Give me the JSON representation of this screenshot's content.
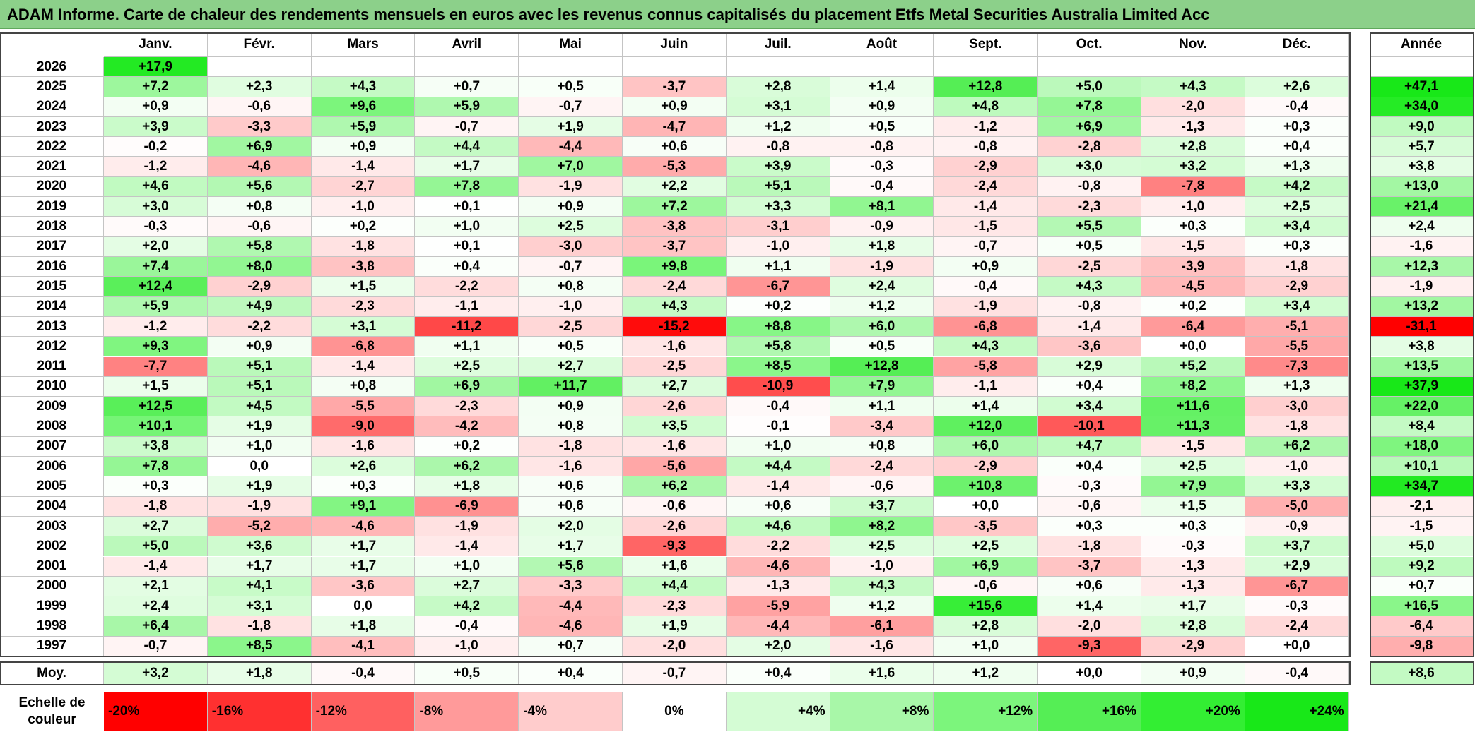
{
  "title": "ADAM Informe. Carte de chaleur des rendements mensuels en euros avec les revenus connus capitalisés du placement Etfs Metal Securities Australia Limited Acc",
  "chart_data": {
    "type": "heatmap",
    "columns": [
      "Janv.",
      "Févr.",
      "Mars",
      "Avril",
      "Mai",
      "Juin",
      "Juil.",
      "Août",
      "Sept.",
      "Oct.",
      "Nov.",
      "Déc."
    ],
    "year_column": "Année",
    "avg_label": "Moy.",
    "rows": [
      {
        "year": "2026",
        "values": [
          "+17,9",
          "",
          "",
          "",
          "",
          "",
          "",
          "",
          "",
          "",
          "",
          ""
        ],
        "annual": ""
      },
      {
        "year": "2025",
        "values": [
          "+7,2",
          "+2,3",
          "+4,3",
          "+0,7",
          "+0,5",
          "-3,7",
          "+2,8",
          "+1,4",
          "+12,8",
          "+5,0",
          "+4,3",
          "+2,6"
        ],
        "annual": "+47,1"
      },
      {
        "year": "2024",
        "values": [
          "+0,9",
          "-0,6",
          "+9,6",
          "+5,9",
          "-0,7",
          "+0,9",
          "+3,1",
          "+0,9",
          "+4,8",
          "+7,8",
          "-2,0",
          "-0,4"
        ],
        "annual": "+34,0"
      },
      {
        "year": "2023",
        "values": [
          "+3,9",
          "-3,3",
          "+5,9",
          "-0,7",
          "+1,9",
          "-4,7",
          "+1,2",
          "+0,5",
          "-1,2",
          "+6,9",
          "-1,3",
          "+0,3"
        ],
        "annual": "+9,0"
      },
      {
        "year": "2022",
        "values": [
          "-0,2",
          "+6,9",
          "+0,9",
          "+4,4",
          "-4,4",
          "+0,6",
          "-0,8",
          "-0,8",
          "-0,8",
          "-2,8",
          "+2,8",
          "+0,4"
        ],
        "annual": "+5,7"
      },
      {
        "year": "2021",
        "values": [
          "-1,2",
          "-4,6",
          "-1,4",
          "+1,7",
          "+7,0",
          "-5,3",
          "+3,9",
          "-0,3",
          "-2,9",
          "+3,0",
          "+3,2",
          "+1,3"
        ],
        "annual": "+3,8"
      },
      {
        "year": "2020",
        "values": [
          "+4,6",
          "+5,6",
          "-2,7",
          "+7,8",
          "-1,9",
          "+2,2",
          "+5,1",
          "-0,4",
          "-2,4",
          "-0,8",
          "-7,8",
          "+4,2"
        ],
        "annual": "+13,0"
      },
      {
        "year": "2019",
        "values": [
          "+3,0",
          "+0,8",
          "-1,0",
          "+0,1",
          "+0,9",
          "+7,2",
          "+3,3",
          "+8,1",
          "-1,4",
          "-2,3",
          "-1,0",
          "+2,5"
        ],
        "annual": "+21,4"
      },
      {
        "year": "2018",
        "values": [
          "-0,3",
          "-0,6",
          "+0,2",
          "+1,0",
          "+2,5",
          "-3,8",
          "-3,1",
          "-0,9",
          "-1,5",
          "+5,5",
          "+0,3",
          "+3,4"
        ],
        "annual": "+2,4"
      },
      {
        "year": "2017",
        "values": [
          "+2,0",
          "+5,8",
          "-1,8",
          "+0,1",
          "-3,0",
          "-3,7",
          "-1,0",
          "+1,8",
          "-0,7",
          "+0,5",
          "-1,5",
          "+0,3"
        ],
        "annual": "-1,6"
      },
      {
        "year": "2016",
        "values": [
          "+7,4",
          "+8,0",
          "-3,8",
          "+0,4",
          "-0,7",
          "+9,8",
          "+1,1",
          "-1,9",
          "+0,9",
          "-2,5",
          "-3,9",
          "-1,8"
        ],
        "annual": "+12,3"
      },
      {
        "year": "2015",
        "values": [
          "+12,4",
          "-2,9",
          "+1,5",
          "-2,2",
          "+0,8",
          "-2,4",
          "-6,7",
          "+2,4",
          "-0,4",
          "+4,3",
          "-4,5",
          "-2,9"
        ],
        "annual": "-1,9"
      },
      {
        "year": "2014",
        "values": [
          "+5,9",
          "+4,9",
          "-2,3",
          "-1,1",
          "-1,0",
          "+4,3",
          "+0,2",
          "+1,2",
          "-1,9",
          "-0,8",
          "+0,2",
          "+3,4"
        ],
        "annual": "+13,2"
      },
      {
        "year": "2013",
        "values": [
          "-1,2",
          "-2,2",
          "+3,1",
          "-11,2",
          "-2,5",
          "-15,2",
          "+8,8",
          "+6,0",
          "-6,8",
          "-1,4",
          "-6,4",
          "-5,1"
        ],
        "annual": "-31,1"
      },
      {
        "year": "2012",
        "values": [
          "+9,3",
          "+0,9",
          "-6,8",
          "+1,1",
          "+0,5",
          "-1,6",
          "+5,8",
          "+0,5",
          "+4,3",
          "-3,6",
          "+0,0",
          "-5,5"
        ],
        "annual": "+3,8"
      },
      {
        "year": "2011",
        "values": [
          "-7,7",
          "+5,1",
          "-1,4",
          "+2,5",
          "+2,7",
          "-2,5",
          "+8,5",
          "+12,8",
          "-5,8",
          "+2,9",
          "+5,2",
          "-7,3"
        ],
        "annual": "+13,5"
      },
      {
        "year": "2010",
        "values": [
          "+1,5",
          "+5,1",
          "+0,8",
          "+6,9",
          "+11,7",
          "+2,7",
          "-10,9",
          "+7,9",
          "-1,1",
          "+0,4",
          "+8,2",
          "+1,3"
        ],
        "annual": "+37,9"
      },
      {
        "year": "2009",
        "values": [
          "+12,5",
          "+4,5",
          "-5,5",
          "-2,3",
          "+0,9",
          "-2,6",
          "-0,4",
          "+1,1",
          "+1,4",
          "+3,4",
          "+11,6",
          "-3,0"
        ],
        "annual": "+22,0"
      },
      {
        "year": "2008",
        "values": [
          "+10,1",
          "+1,9",
          "-9,0",
          "-4,2",
          "+0,8",
          "+3,5",
          "-0,1",
          "-3,4",
          "+12,0",
          "-10,1",
          "+11,3",
          "-1,8"
        ],
        "annual": "+8,4"
      },
      {
        "year": "2007",
        "values": [
          "+3,8",
          "+1,0",
          "-1,6",
          "+0,2",
          "-1,8",
          "-1,6",
          "+1,0",
          "+0,8",
          "+6,0",
          "+4,7",
          "-1,5",
          "+6,2"
        ],
        "annual": "+18,0"
      },
      {
        "year": "2006",
        "values": [
          "+7,8",
          "0,0",
          "+2,6",
          "+6,2",
          "-1,6",
          "-5,6",
          "+4,4",
          "-2,4",
          "-2,9",
          "+0,4",
          "+2,5",
          "-1,0"
        ],
        "annual": "+10,1"
      },
      {
        "year": "2005",
        "values": [
          "+0,3",
          "+1,9",
          "+0,3",
          "+1,8",
          "+0,6",
          "+6,2",
          "-1,4",
          "-0,6",
          "+10,8",
          "-0,3",
          "+7,9",
          "+3,3"
        ],
        "annual": "+34,7"
      },
      {
        "year": "2004",
        "values": [
          "-1,8",
          "-1,9",
          "+9,1",
          "-6,9",
          "+0,6",
          "-0,6",
          "+0,6",
          "+3,7",
          "+0,0",
          "-0,6",
          "+1,5",
          "-5,0"
        ],
        "annual": "-2,1"
      },
      {
        "year": "2003",
        "values": [
          "+2,7",
          "-5,2",
          "-4,6",
          "-1,9",
          "+2,0",
          "-2,6",
          "+4,6",
          "+8,2",
          "-3,5",
          "+0,3",
          "+0,3",
          "-0,9"
        ],
        "annual": "-1,5"
      },
      {
        "year": "2002",
        "values": [
          "+5,0",
          "+3,6",
          "+1,7",
          "-1,4",
          "+1,7",
          "-9,3",
          "-2,2",
          "+2,5",
          "+2,5",
          "-1,8",
          "-0,3",
          "+3,7"
        ],
        "annual": "+5,0"
      },
      {
        "year": "2001",
        "values": [
          "-1,4",
          "+1,7",
          "+1,7",
          "+1,0",
          "+5,6",
          "+1,6",
          "-4,6",
          "-1,0",
          "+6,9",
          "-3,7",
          "-1,3",
          "+2,9"
        ],
        "annual": "+9,2"
      },
      {
        "year": "2000",
        "values": [
          "+2,1",
          "+4,1",
          "-3,6",
          "+2,7",
          "-3,3",
          "+4,4",
          "-1,3",
          "+4,3",
          "-0,6",
          "+0,6",
          "-1,3",
          "-6,7"
        ],
        "annual": "+0,7"
      },
      {
        "year": "1999",
        "values": [
          "+2,4",
          "+3,1",
          "0,0",
          "+4,2",
          "-4,4",
          "-2,3",
          "-5,9",
          "+1,2",
          "+15,6",
          "+1,4",
          "+1,7",
          "-0,3"
        ],
        "annual": "+16,5"
      },
      {
        "year": "1998",
        "values": [
          "+6,4",
          "-1,8",
          "+1,8",
          "-0,4",
          "-4,6",
          "+1,9",
          "-4,4",
          "-6,1",
          "+2,8",
          "-2,0",
          "+2,8",
          "-2,4"
        ],
        "annual": "-6,4"
      },
      {
        "year": "1997",
        "values": [
          "-0,7",
          "+8,5",
          "-4,1",
          "-1,0",
          "+0,7",
          "-2,0",
          "+2,0",
          "-1,6",
          "+1,0",
          "-9,3",
          "-2,9",
          "+0,0"
        ],
        "annual": "-9,8"
      }
    ],
    "averages": [
      "+3,2",
      "+1,8",
      "-0,4",
      "+0,5",
      "+0,4",
      "-0,7",
      "+0,4",
      "+1,6",
      "+1,2",
      "+0,0",
      "+0,9",
      "-0,4"
    ],
    "average_annual": "+8,6",
    "scale_label": "Echelle de couleur",
    "scale": [
      {
        "label": "-20%",
        "value": -20,
        "color": "#ff0000"
      },
      {
        "label": "-16%",
        "value": -16,
        "color": "#ff3030"
      },
      {
        "label": "-12%",
        "value": -12,
        "color": "#ff6060"
      },
      {
        "label": "-8%",
        "value": -8,
        "color": "#ff9a9a"
      },
      {
        "label": "-4%",
        "value": -4,
        "color": "#ffcccc"
      },
      {
        "label": "0%",
        "value": 0,
        "color": "#ffffff"
      },
      {
        "label": "+4%",
        "value": 4,
        "color": "#d4fcd4"
      },
      {
        "label": "+8%",
        "value": 8,
        "color": "#a8f7a8"
      },
      {
        "label": "+12%",
        "value": 12,
        "color": "#7cf57c"
      },
      {
        "label": "+16%",
        "value": 16,
        "color": "#55ee55"
      },
      {
        "label": "+20%",
        "value": 20,
        "color": "#33ee33"
      },
      {
        "label": "+24%",
        "value": 24,
        "color": "#18e818"
      }
    ]
  }
}
